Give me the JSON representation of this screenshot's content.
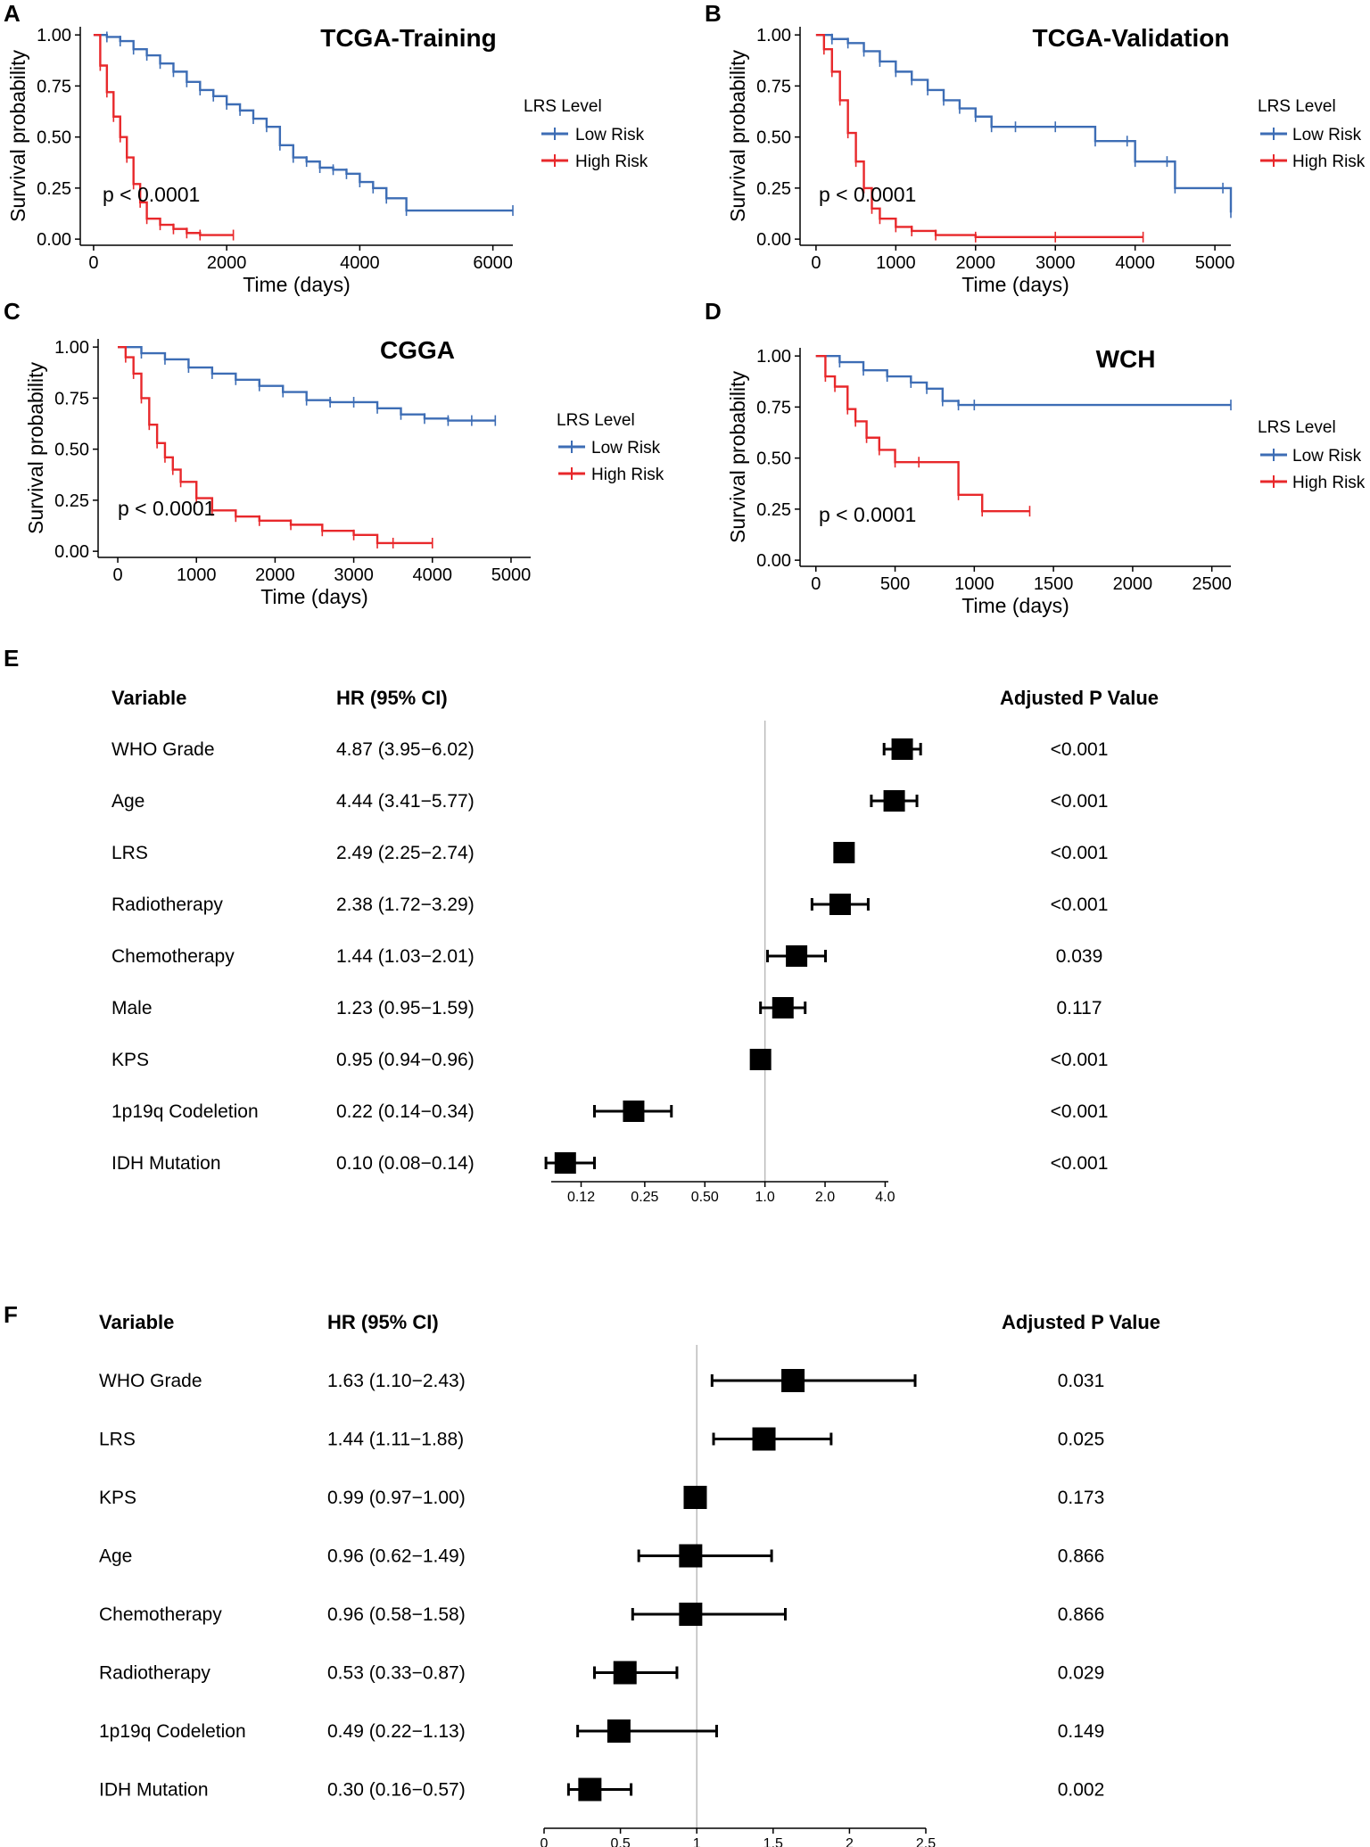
{
  "figure_labels": [
    "A",
    "B",
    "C",
    "D",
    "E",
    "F"
  ],
  "legend_title_a": "LRS  Level",
  "legend_title": "LRS Level",
  "legend_items": [
    "Low Risk",
    "High Risk"
  ],
  "colors": {
    "low_risk": "#3d6db5",
    "high_risk": "#e8282b",
    "ref_line": "#bbbbbb",
    "text": "#000000"
  },
  "chart_data": [
    {
      "type": "line",
      "panel": "A",
      "title": "TCGA-Training",
      "xlabel": "Time (days)",
      "ylabel": "Survival probability",
      "xlim": [
        -200,
        6300
      ],
      "ylim": [
        -0.03,
        1.04
      ],
      "x_ticks": [
        0,
        2000,
        4000,
        6000
      ],
      "x_tick_labels": [
        "0",
        "2000",
        "4000",
        "6000"
      ],
      "y_ticks": [
        0,
        0.25,
        0.5,
        0.75,
        1.0
      ],
      "y_tick_labels": [
        "0.00",
        "0.25",
        "0.50",
        "0.75",
        "1.00"
      ],
      "p_value": "p < 0.0001",
      "series": [
        {
          "name": "Low Risk",
          "x": [
            0,
            200,
            400,
            600,
            800,
            1000,
            1200,
            1400,
            1600,
            1800,
            2000,
            2200,
            2400,
            2600,
            2800,
            3000,
            3200,
            3400,
            3600,
            3800,
            4000,
            4200,
            4400,
            4700,
            6300
          ],
          "y": [
            1.0,
            0.99,
            0.97,
            0.93,
            0.9,
            0.86,
            0.82,
            0.77,
            0.73,
            0.7,
            0.66,
            0.63,
            0.59,
            0.55,
            0.46,
            0.4,
            0.38,
            0.35,
            0.34,
            0.32,
            0.28,
            0.25,
            0.2,
            0.14,
            0.14
          ]
        },
        {
          "name": "High Risk",
          "x": [
            0,
            100,
            200,
            300,
            400,
            500,
            600,
            700,
            800,
            1000,
            1200,
            1400,
            1600,
            2100
          ],
          "y": [
            1.0,
            0.85,
            0.72,
            0.6,
            0.5,
            0.4,
            0.27,
            0.18,
            0.1,
            0.07,
            0.05,
            0.03,
            0.02,
            0.02
          ]
        }
      ]
    },
    {
      "type": "line",
      "panel": "B",
      "title": "TCGA-Validation",
      "xlabel": "Time (days)",
      "ylabel": "Survival probability",
      "xlim": [
        -200,
        5200
      ],
      "ylim": [
        -0.03,
        1.04
      ],
      "x_ticks": [
        0,
        1000,
        2000,
        3000,
        4000,
        5000
      ],
      "x_tick_labels": [
        "0",
        "1000",
        "2000",
        "3000",
        "4000",
        "5000"
      ],
      "y_ticks": [
        0,
        0.25,
        0.5,
        0.75,
        1.0
      ],
      "y_tick_labels": [
        "0.00",
        "0.25",
        "0.50",
        "0.75",
        "1.00"
      ],
      "p_value": "p < 0.0001",
      "series": [
        {
          "name": "Low Risk",
          "x": [
            0,
            200,
            400,
            600,
            800,
            1000,
            1200,
            1400,
            1600,
            1800,
            2000,
            2200,
            2500,
            3000,
            3500,
            3900,
            4000,
            4400,
            4500,
            5100,
            5200
          ],
          "y": [
            1.0,
            0.98,
            0.96,
            0.92,
            0.87,
            0.82,
            0.78,
            0.73,
            0.68,
            0.64,
            0.6,
            0.55,
            0.55,
            0.55,
            0.48,
            0.48,
            0.38,
            0.38,
            0.25,
            0.25,
            0.13
          ]
        },
        {
          "name": "High Risk",
          "x": [
            0,
            100,
            200,
            300,
            400,
            500,
            600,
            700,
            800,
            1000,
            1200,
            1500,
            2000,
            3000,
            4100
          ],
          "y": [
            1.0,
            0.93,
            0.82,
            0.68,
            0.52,
            0.38,
            0.25,
            0.15,
            0.1,
            0.06,
            0.04,
            0.02,
            0.01,
            0.01,
            0.01
          ]
        }
      ]
    },
    {
      "type": "line",
      "panel": "C",
      "title": "CGGA",
      "xlabel": "Time (days)",
      "ylabel": "Survival probability",
      "xlim": [
        -250,
        5250
      ],
      "ylim": [
        -0.03,
        1.04
      ],
      "x_ticks": [
        0,
        1000,
        2000,
        3000,
        4000,
        5000
      ],
      "x_tick_labels": [
        "0",
        "1000",
        "2000",
        "3000",
        "4000",
        "5000"
      ],
      "y_ticks": [
        0,
        0.25,
        0.5,
        0.75,
        1.0
      ],
      "y_tick_labels": [
        "0.00",
        "0.25",
        "0.50",
        "0.75",
        "1.00"
      ],
      "p_value": "p < 0.0001",
      "series": [
        {
          "name": "Low Risk",
          "x": [
            0,
            300,
            600,
            900,
            1200,
            1500,
            1800,
            2100,
            2400,
            2700,
            3000,
            3300,
            3600,
            3900,
            4200,
            4500,
            4800
          ],
          "y": [
            1.0,
            0.97,
            0.94,
            0.9,
            0.87,
            0.84,
            0.81,
            0.78,
            0.74,
            0.73,
            0.73,
            0.7,
            0.67,
            0.65,
            0.64,
            0.64,
            0.64
          ]
        },
        {
          "name": "High Risk",
          "x": [
            0,
            100,
            200,
            300,
            400,
            500,
            600,
            700,
            800,
            1000,
            1200,
            1500,
            1800,
            2200,
            2600,
            3000,
            3300,
            3500,
            4000
          ],
          "y": [
            1.0,
            0.95,
            0.87,
            0.75,
            0.62,
            0.53,
            0.46,
            0.4,
            0.34,
            0.26,
            0.2,
            0.17,
            0.15,
            0.13,
            0.1,
            0.08,
            0.04,
            0.04,
            0.04
          ]
        }
      ]
    },
    {
      "type": "line",
      "panel": "D",
      "title": "WCH",
      "xlabel": "Time (days)",
      "ylabel": "Survival probability",
      "xlim": [
        -100,
        2620
      ],
      "ylim": [
        -0.03,
        1.04
      ],
      "x_ticks": [
        0,
        500,
        1000,
        1500,
        2000,
        2500
      ],
      "x_tick_labels": [
        "0",
        "500",
        "1000",
        "1500",
        "2000",
        "2500"
      ],
      "y_ticks": [
        0,
        0.25,
        0.5,
        0.75,
        1.0
      ],
      "y_tick_labels": [
        "0.00",
        "0.25",
        "0.50",
        "0.75",
        "1.00"
      ],
      "p_value": "p < 0.0001",
      "series": [
        {
          "name": "Low Risk",
          "x": [
            0,
            150,
            300,
            450,
            600,
            700,
            800,
            900,
            1000,
            2620
          ],
          "y": [
            1.0,
            0.97,
            0.93,
            0.9,
            0.87,
            0.84,
            0.78,
            0.76,
            0.76,
            0.76
          ]
        },
        {
          "name": "High Risk",
          "x": [
            0,
            60,
            120,
            200,
            250,
            320,
            400,
            500,
            650,
            900,
            1050,
            1350
          ],
          "y": [
            1.0,
            0.9,
            0.85,
            0.74,
            0.68,
            0.6,
            0.54,
            0.48,
            0.48,
            0.32,
            0.24,
            0.24
          ]
        }
      ]
    },
    {
      "type": "forest",
      "panel": "E",
      "scale": "log",
      "headers": {
        "variable": "Variable",
        "hr": "HR (95% CI)",
        "p": "Adjusted P Value"
      },
      "x_ticks": [
        0.12,
        0.25,
        0.5,
        1.0,
        2.0,
        4.0
      ],
      "x_tick_labels": [
        "0.12",
        "0.25",
        "0.50",
        "1.0",
        "2.0",
        "4.0"
      ],
      "xlim": [
        0.085,
        4.15
      ],
      "reference": 1.0,
      "rows": [
        {
          "variable": "WHO Grade",
          "hr_text": "4.87 (3.95−6.02)",
          "hr": 4.87,
          "lo": 3.95,
          "hi": 6.02,
          "p": "<0.001"
        },
        {
          "variable": "Age",
          "hr_text": "4.44 (3.41−5.77)",
          "hr": 4.44,
          "lo": 3.41,
          "hi": 5.77,
          "p": "<0.001"
        },
        {
          "variable": "LRS",
          "hr_text": "2.49 (2.25−2.74)",
          "hr": 2.49,
          "lo": 2.25,
          "hi": 2.74,
          "p": "<0.001"
        },
        {
          "variable": "Radiotherapy",
          "hr_text": "2.38 (1.72−3.29)",
          "hr": 2.38,
          "lo": 1.72,
          "hi": 3.29,
          "p": "<0.001"
        },
        {
          "variable": "Chemotherapy",
          "hr_text": "1.44 (1.03−2.01)",
          "hr": 1.44,
          "lo": 1.03,
          "hi": 2.01,
          "p": "0.039"
        },
        {
          "variable": "Male",
          "hr_text": "1.23 (0.95−1.59)",
          "hr": 1.23,
          "lo": 0.95,
          "hi": 1.59,
          "p": "0.117"
        },
        {
          "variable": "KPS",
          "hr_text": "0.95 (0.94−0.96)",
          "hr": 0.95,
          "lo": 0.94,
          "hi": 0.96,
          "p": "<0.001"
        },
        {
          "variable": "1p19q Codeletion",
          "hr_text": "0.22 (0.14−0.34)",
          "hr": 0.22,
          "lo": 0.14,
          "hi": 0.34,
          "p": "<0.001"
        },
        {
          "variable": "IDH Mutation",
          "hr_text": "0.10 (0.08−0.14)",
          "hr": 0.1,
          "lo": 0.08,
          "hi": 0.14,
          "p": "<0.001"
        }
      ]
    },
    {
      "type": "forest",
      "panel": "F",
      "scale": "linear",
      "headers": {
        "variable": "Variable",
        "hr": "HR (95% CI)",
        "p": "Adjusted P Value"
      },
      "x_ticks": [
        0,
        0.5,
        1,
        1.5,
        2,
        2.5
      ],
      "x_tick_labels": [
        "0",
        "0.5",
        "1",
        "1.5",
        "2",
        "2.5"
      ],
      "xlim": [
        0,
        2.5
      ],
      "reference": 1.0,
      "rows": [
        {
          "variable": "WHO Grade",
          "hr_text": "1.63 (1.10−2.43)",
          "hr": 1.63,
          "lo": 1.1,
          "hi": 2.43,
          "p": "0.031"
        },
        {
          "variable": "LRS",
          "hr_text": "1.44 (1.11−1.88)",
          "hr": 1.44,
          "lo": 1.11,
          "hi": 1.88,
          "p": "0.025"
        },
        {
          "variable": "KPS",
          "hr_text": "0.99 (0.97−1.00)",
          "hr": 0.99,
          "lo": 0.97,
          "hi": 1.0,
          "p": "0.173"
        },
        {
          "variable": "Age",
          "hr_text": "0.96 (0.62−1.49)",
          "hr": 0.96,
          "lo": 0.62,
          "hi": 1.49,
          "p": "0.866"
        },
        {
          "variable": "Chemotherapy",
          "hr_text": "0.96 (0.58−1.58)",
          "hr": 0.96,
          "lo": 0.58,
          "hi": 1.58,
          "p": "0.866"
        },
        {
          "variable": "Radiotherapy",
          "hr_text": "0.53 (0.33−0.87)",
          "hr": 0.53,
          "lo": 0.33,
          "hi": 0.87,
          "p": "0.029"
        },
        {
          "variable": "1p19q Codeletion",
          "hr_text": "0.49 (0.22−1.13)",
          "hr": 0.49,
          "lo": 0.22,
          "hi": 1.13,
          "p": "0.149"
        },
        {
          "variable": "IDH Mutation",
          "hr_text": "0.30 (0.16−0.57)",
          "hr": 0.3,
          "lo": 0.16,
          "hi": 0.57,
          "p": "0.002"
        }
      ]
    }
  ]
}
